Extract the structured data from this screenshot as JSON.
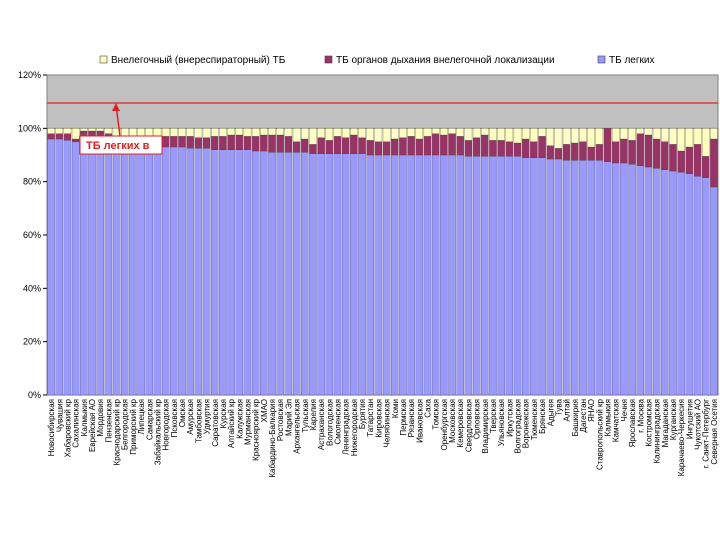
{
  "chart_data": {
    "type": "stacked-bar",
    "categories": [
      "Новосибирская",
      "Чувашия",
      "Хабаровский кр",
      "Сахалинская",
      "Калмыкия",
      "Еврейская АО",
      "Мордовия",
      "Пензенская",
      "Краснодарский кр",
      "Белгородская",
      "Приморский кр",
      "Липецкая",
      "Самарская",
      "Забайкальский кр",
      "Новгородская",
      "Псковская",
      "Омская",
      "Амурская",
      "Тамбовская",
      "Удмуртия",
      "Саратовская",
      "Курская",
      "Алтайский кр",
      "Калужская",
      "Мурманская",
      "Красноярский кр",
      "ХМАО",
      "Кабардино-Балкария",
      "Ростовская",
      "Марий Эл",
      "Архангельская",
      "Тульская",
      "Карелия",
      "Астраханская",
      "Вологодская",
      "Смоленская",
      "Ленинградская",
      "Нижегородская",
      "Бурятия",
      "Татарстан",
      "Кировская",
      "Челябинская",
      "Коми",
      "Пермская",
      "Рязанская",
      "Ивановская",
      "Саха",
      "Томская",
      "Оренбургская",
      "Московская",
      "Кемеровская",
      "Свердловская",
      "Орловская",
      "Владимирская",
      "Тверская",
      "Ульяновская",
      "Иркутская",
      "Волгоградская",
      "Воронежская",
      "Тюменская",
      "Брянская",
      "Адыгея",
      "Тува",
      "Алтай",
      "Башкирия",
      "Дагестан",
      "ЯНАО",
      "Ставропольский кр",
      "Калмыкия",
      "Камчатская",
      "Чечня",
      "Ярославская",
      "г. Москва",
      "Костромская",
      "Калининградская",
      "Магаданская",
      "Курганская",
      "Карачаево-Черкесия",
      "Ингушетия",
      "Чукотский АО",
      "г. Санкт-Петербург",
      "Северная Осетия"
    ],
    "series": [
      {
        "name": "Внелегочный (внереспираторный) ТБ",
        "color": "#ffffc0",
        "values": [
          2,
          2,
          2,
          4,
          1,
          1,
          1,
          2,
          3,
          3.5,
          3,
          4,
          5,
          4.5,
          3,
          3,
          3,
          3,
          3.5,
          3.5,
          3,
          3,
          2.5,
          2.5,
          3,
          3,
          2.5,
          2.5,
          2.5,
          3,
          5,
          4,
          6,
          3.5,
          4.5,
          3,
          3.5,
          2.5,
          3.5,
          4.5,
          5,
          5,
          4,
          3.5,
          3,
          4,
          3,
          2,
          2.5,
          2,
          3,
          4.5,
          3.5,
          2.5,
          4.5,
          4.5,
          5,
          5.5,
          4,
          5,
          3,
          6.5,
          7.5,
          6,
          5.5,
          5,
          7,
          6,
          0,
          5,
          4,
          4.5,
          2,
          2.5,
          4,
          5,
          6,
          8.5,
          7,
          6,
          10.5,
          4
        ]
      },
      {
        "name": "ТБ органов дыхания внелегочной локализации",
        "color": "#993366",
        "values": [
          2,
          2,
          2.5,
          1,
          4,
          4,
          4,
          3,
          2.5,
          2,
          3,
          2,
          1.5,
          2,
          4,
          4,
          4,
          4.5,
          4,
          4,
          5,
          5,
          5.5,
          5.5,
          5,
          5.5,
          6,
          6.5,
          6.5,
          6,
          4,
          5,
          3.5,
          6,
          5,
          6.5,
          6,
          7,
          6,
          5.5,
          5,
          5,
          6,
          6.5,
          7,
          6,
          7,
          8,
          7.5,
          8,
          7,
          6,
          7,
          8,
          6,
          6,
          5.5,
          5,
          7,
          6,
          8,
          5,
          4,
          6,
          6.5,
          7,
          5,
          6,
          12.5,
          8,
          9,
          9,
          12,
          12,
          11,
          10.5,
          10,
          8,
          10,
          12,
          8,
          18
        ]
      },
      {
        "name": "ТБ легких",
        "color": "#9999ff",
        "values": [
          96,
          96,
          95.5,
          95,
          95,
          95,
          95,
          95,
          94.5,
          94.5,
          94,
          94,
          93.5,
          93.5,
          93,
          93,
          93,
          92.5,
          92.5,
          92.5,
          92,
          92,
          92,
          92,
          92,
          91.5,
          91.5,
          91,
          91,
          91,
          91,
          91,
          90.5,
          90.5,
          90.5,
          90.5,
          90.5,
          90.5,
          90.5,
          90,
          90,
          90,
          90,
          90,
          90,
          90,
          90,
          90,
          90,
          90,
          90,
          89.5,
          89.5,
          89.5,
          89.5,
          89.5,
          89.5,
          89.5,
          89,
          89,
          89,
          88.5,
          88.5,
          88,
          88,
          88,
          88,
          88,
          87.5,
          87,
          87,
          86.5,
          86,
          85.5,
          85,
          84.5,
          84,
          83.5,
          83,
          82,
          81.5,
          78
        ]
      }
    ],
    "ylim": [
      0,
      120
    ],
    "yticks": [
      {
        "value": 0,
        "label": "0%"
      },
      {
        "value": 20,
        "label": "20%"
      },
      {
        "value": 40,
        "label": "40%"
      },
      {
        "value": 60,
        "label": "60%"
      },
      {
        "value": 80,
        "label": "80%"
      },
      {
        "value": 100,
        "label": "100%"
      },
      {
        "value": 120,
        "label": "120%"
      }
    ],
    "shaded_range": [
      100,
      120
    ],
    "reference_line": 109.5,
    "annotation": "ТБ легких в",
    "legend": "top"
  }
}
